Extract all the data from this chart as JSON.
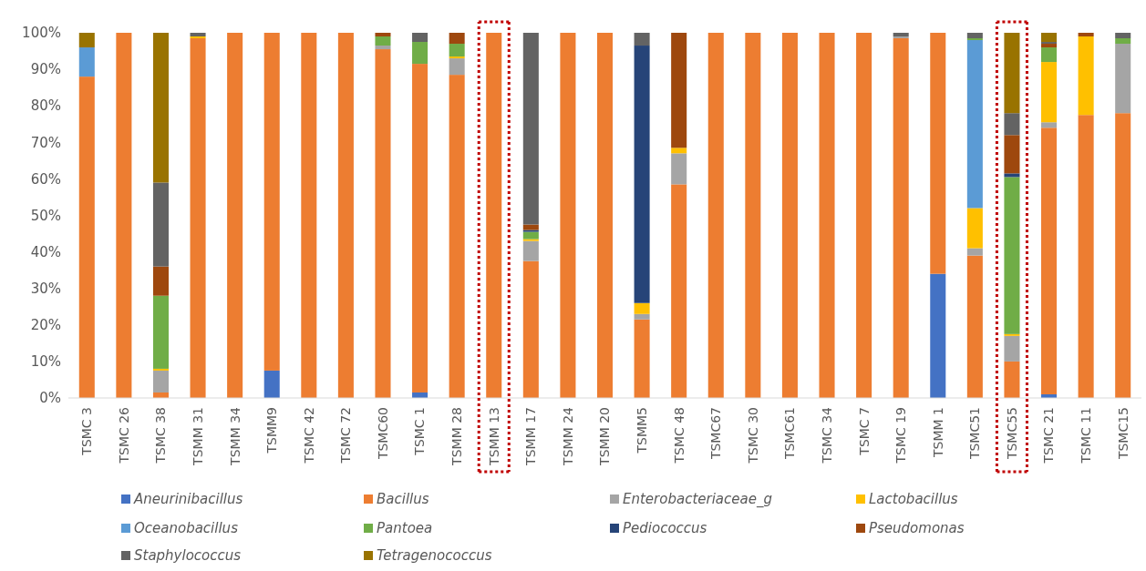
{
  "chart_data": {
    "type": "bar",
    "stacked": true,
    "categories": [
      "TSMC 3",
      "TSMC 26",
      "TSMC 38",
      "TSMM 31",
      "TSMM 34",
      "TSMM9",
      "TSMC 42",
      "TSMC 72",
      "TSMC60",
      "TSMC 1",
      "TSMM 28",
      "TSMM 13",
      "TSMM 17",
      "TSMM 24",
      "TSMM 20",
      "TSMM5",
      "TSMC 48",
      "TSMC67",
      "TSMC 30",
      "TSMC61",
      "TSMC 34",
      "TSMC 7",
      "TSMC 19",
      "TSMM 1",
      "TSMC51",
      "TSMC55",
      "TSMC 21",
      "TSMC 11",
      "TSMC15"
    ],
    "series": [
      {
        "name": "Aneurinibacillus",
        "color": "#4472c4",
        "values": [
          0,
          0,
          0,
          0,
          0,
          7.5,
          0,
          0,
          0,
          1.5,
          0,
          0,
          0,
          0,
          0,
          0,
          0,
          0,
          0,
          0,
          0,
          0,
          0,
          34,
          0,
          0,
          1,
          0,
          0
        ]
      },
      {
        "name": "Bacillus",
        "color": "#ed7d31",
        "values": [
          88,
          100,
          1.5,
          98.5,
          100,
          92.5,
          100,
          100,
          95.5,
          90,
          88.5,
          100,
          37.5,
          100,
          100,
          21.5,
          58.5,
          100,
          100,
          100,
          100,
          100,
          98.5,
          66,
          39,
          10,
          73,
          77.5,
          78
        ]
      },
      {
        "name": "Enterobacteriaceae_g",
        "color": "#a5a5a5",
        "values": [
          0,
          0,
          6,
          0,
          0,
          0,
          0,
          0,
          1,
          0,
          4.5,
          0,
          5.5,
          0,
          0,
          1.5,
          8.5,
          0,
          0,
          0,
          0,
          0,
          0.5,
          0,
          2,
          7,
          1.5,
          0,
          19
        ]
      },
      {
        "name": "Lactobacillus",
        "color": "#ffc000",
        "values": [
          0,
          0,
          0.5,
          0.5,
          0,
          0,
          0,
          0,
          0,
          0,
          0.5,
          0,
          0.5,
          0,
          0,
          3,
          1.5,
          0,
          0,
          0,
          0,
          0,
          0,
          0,
          11,
          0.5,
          16.5,
          21.5,
          0
        ]
      },
      {
        "name": "Oceanobacillus",
        "color": "#5b9bd5",
        "values": [
          8,
          0,
          0,
          0,
          0,
          0,
          0,
          0,
          0,
          0,
          0,
          0,
          0,
          0,
          0,
          0,
          0,
          0,
          0,
          0,
          0,
          0,
          0,
          0,
          46,
          0,
          0,
          0,
          0
        ]
      },
      {
        "name": "Pantoea",
        "color": "#70ad47",
        "values": [
          0,
          0,
          20,
          0,
          0,
          0,
          0,
          0,
          2.5,
          6,
          3.5,
          0,
          2,
          0,
          0,
          0,
          0,
          0,
          0,
          0,
          0,
          0,
          0,
          0,
          0.5,
          43,
          4,
          0,
          1.5
        ]
      },
      {
        "name": "Pediococcus",
        "color": "#264478",
        "values": [
          0,
          0,
          0,
          0,
          0,
          0,
          0,
          0,
          0,
          0,
          0,
          0,
          0.5,
          0,
          0,
          70.5,
          0,
          0,
          0,
          0,
          0,
          0,
          0,
          0,
          0,
          1,
          0,
          0,
          0
        ]
      },
      {
        "name": "Pseudomonas",
        "color": "#9e480e",
        "values": [
          0,
          0,
          8,
          0,
          0,
          0,
          0,
          0,
          1,
          0,
          3,
          0,
          1.5,
          0,
          0,
          0,
          31.5,
          0,
          0,
          0,
          0,
          0,
          0,
          0,
          0,
          10.5,
          1,
          1,
          0
        ]
      },
      {
        "name": "Staphylococcus",
        "color": "#636363",
        "values": [
          0,
          0,
          23,
          1,
          0,
          0,
          0,
          0,
          0,
          2.5,
          0,
          0,
          52.5,
          0,
          0,
          3.5,
          0,
          0,
          0,
          0,
          0,
          0,
          1,
          0,
          1.5,
          6,
          0.5,
          0,
          1.5
        ]
      },
      {
        "name": "Tetragenococcus",
        "color": "#997300",
        "values": [
          4,
          0,
          41,
          0,
          0,
          0,
          0,
          0,
          0,
          0,
          0,
          0,
          0,
          0,
          0,
          0,
          0,
          0,
          0,
          0,
          0,
          0,
          0,
          0,
          0,
          22,
          2.5,
          0,
          0
        ]
      }
    ],
    "ylim": [
      0,
      100
    ],
    "yticks": [
      {
        "value": 0,
        "label": "0%"
      },
      {
        "value": 10,
        "label": "10%"
      },
      {
        "value": 20,
        "label": "20%"
      },
      {
        "value": 30,
        "label": "30%"
      },
      {
        "value": 40,
        "label": "40%"
      },
      {
        "value": 50,
        "label": "50%"
      },
      {
        "value": 60,
        "label": "60%"
      },
      {
        "value": 70,
        "label": "70%"
      },
      {
        "value": 80,
        "label": "80%"
      },
      {
        "value": 90,
        "label": "90%"
      },
      {
        "value": 100,
        "label": "100%"
      }
    ],
    "legend": "bottom"
  }
}
